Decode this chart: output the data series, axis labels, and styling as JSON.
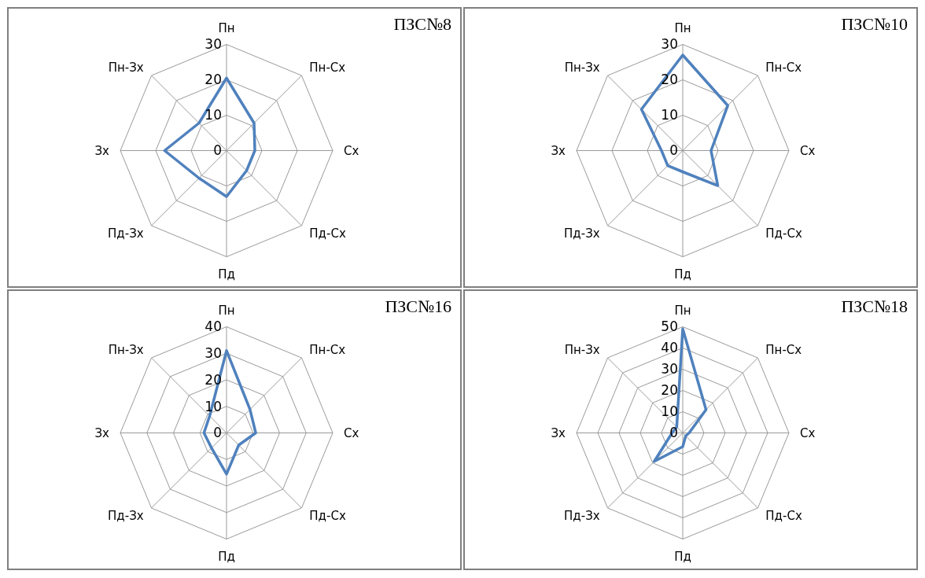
{
  "chart_data": [
    {
      "type": "radar",
      "title": "ПЗС№8",
      "categories": [
        "Пн",
        "Пн-Сх",
        "Сх",
        "Пд-Сх",
        "Пд",
        "Пд-Зх",
        "Зх",
        "Пн-Зх"
      ],
      "series": [
        {
          "color": "#4f81bd",
          "values": [
            20.5,
            11,
            8,
            8,
            13,
            11,
            17.5,
            11
          ]
        }
      ],
      "ylim": [
        0,
        30
      ],
      "yticks": [
        0,
        10,
        20,
        30
      ],
      "grid": true
    },
    {
      "type": "radar",
      "title": "ПЗС№10",
      "categories": [
        "Пн",
        "Пн-Сх",
        "Сх",
        "Пд-Сх",
        "Пд",
        "Пд-Зх",
        "Зх",
        "Пн-Зх"
      ],
      "series": [
        {
          "color": "#4f81bd",
          "values": [
            27,
            18,
            8,
            14,
            6,
            6,
            6,
            16.5
          ]
        }
      ],
      "ylim": [
        0,
        30
      ],
      "yticks": [
        0,
        10,
        20,
        30
      ],
      "grid": true
    },
    {
      "type": "radar",
      "title": "ПЗС№16",
      "categories": [
        "Пн",
        "Пн-Сх",
        "Сх",
        "Пд-Сх",
        "Пд",
        "Пд-Зх",
        "Зх",
        "Пн-Зх"
      ],
      "series": [
        {
          "color": "#4f81bd",
          "values": [
            31,
            12.5,
            11,
            6.5,
            15.5,
            8,
            8.5,
            9
          ]
        }
      ],
      "ylim": [
        0,
        40
      ],
      "yticks": [
        0,
        10,
        20,
        30,
        40
      ],
      "grid": true
    },
    {
      "type": "radar",
      "title": "ПЗС№18",
      "categories": [
        "Пн",
        "Пн-Сх",
        "Сх",
        "Пд-Сх",
        "Пд",
        "Пд-Зх",
        "Зх",
        "Пн-Зх"
      ],
      "series": [
        {
          "color": "#4f81bd",
          "values": [
            49,
            15.5,
            3,
            2,
            6.5,
            19,
            5,
            4
          ]
        }
      ],
      "ylim": [
        0,
        50
      ],
      "yticks": [
        0,
        10,
        20,
        30,
        40,
        50
      ],
      "grid": true
    }
  ]
}
